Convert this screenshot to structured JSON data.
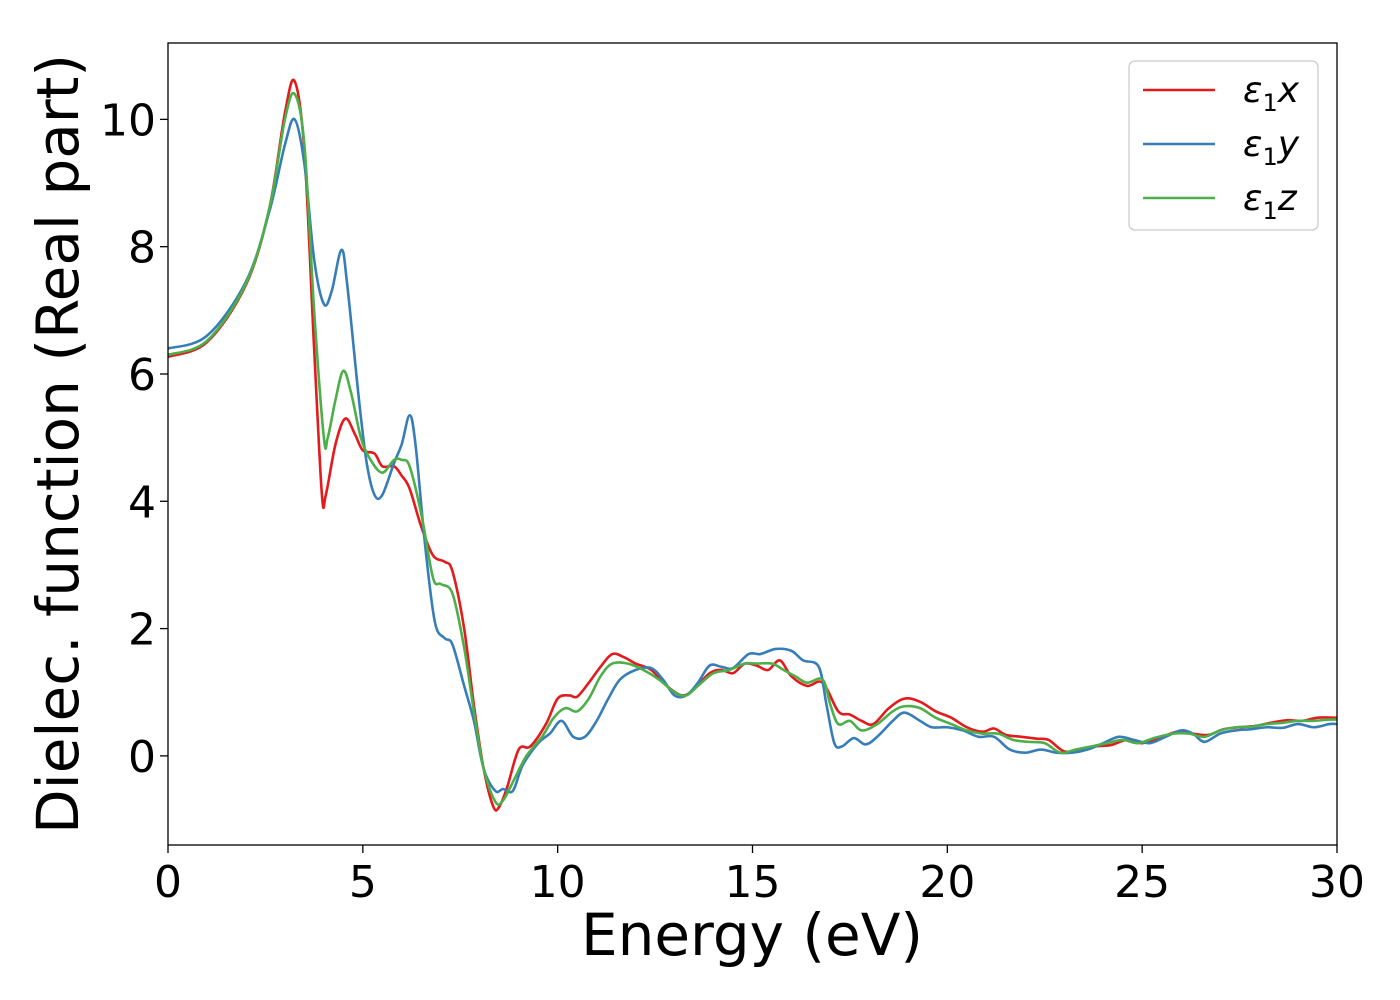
{
  "chart_data": {
    "type": "line",
    "xlabel": "Energy (eV)",
    "ylabel": "Dielec. function (Real part)",
    "xlim": [
      0,
      30
    ],
    "ylim": [
      -1.4,
      11.2
    ],
    "xticks": [
      0,
      5,
      10,
      15,
      20,
      25,
      30
    ],
    "xtick_labels": [
      "0",
      "5",
      "10",
      "15",
      "20",
      "25",
      "30"
    ],
    "yticks": [
      0,
      2,
      4,
      6,
      8,
      10
    ],
    "ytick_labels": [
      "0",
      "2",
      "4",
      "6",
      "8",
      "10"
    ],
    "grid": false,
    "legend_position": "top-right",
    "series": [
      {
        "name": "ε₁x",
        "name_base": "ε",
        "name_sub": "1",
        "name_var": "x",
        "color": "#e41a1c",
        "points": [
          [
            0,
            6.27
          ],
          [
            1,
            6.5
          ],
          [
            2,
            7.4
          ],
          [
            2.6,
            8.6
          ],
          [
            3,
            10.1
          ],
          [
            3.25,
            10.6
          ],
          [
            3.5,
            9.5
          ],
          [
            3.75,
            6.4
          ],
          [
            3.95,
            4.1
          ],
          [
            4.05,
            4.1
          ],
          [
            4.3,
            4.9
          ],
          [
            4.55,
            5.3
          ],
          [
            4.8,
            5.05
          ],
          [
            5,
            4.8
          ],
          [
            5.3,
            4.75
          ],
          [
            5.5,
            4.55
          ],
          [
            5.8,
            4.55
          ],
          [
            6,
            4.4
          ],
          [
            6.2,
            4.2
          ],
          [
            6.5,
            3.6
          ],
          [
            6.8,
            3.15
          ],
          [
            7.1,
            3.05
          ],
          [
            7.3,
            2.9
          ],
          [
            7.6,
            2.0
          ],
          [
            7.85,
            0.8
          ],
          [
            8.1,
            -0.2
          ],
          [
            8.35,
            -0.8
          ],
          [
            8.5,
            -0.8
          ],
          [
            8.7,
            -0.5
          ],
          [
            9.0,
            0.1
          ],
          [
            9.3,
            0.15
          ],
          [
            9.7,
            0.5
          ],
          [
            10.0,
            0.9
          ],
          [
            10.3,
            0.95
          ],
          [
            10.5,
            0.93
          ],
          [
            10.8,
            1.15
          ],
          [
            11.1,
            1.4
          ],
          [
            11.4,
            1.6
          ],
          [
            11.7,
            1.55
          ],
          [
            12.0,
            1.45
          ],
          [
            12.4,
            1.35
          ],
          [
            12.8,
            1.1
          ],
          [
            13.2,
            0.95
          ],
          [
            13.5,
            1.05
          ],
          [
            13.9,
            1.3
          ],
          [
            14.2,
            1.35
          ],
          [
            14.5,
            1.3
          ],
          [
            14.8,
            1.45
          ],
          [
            15.1,
            1.42
          ],
          [
            15.4,
            1.35
          ],
          [
            15.7,
            1.5
          ],
          [
            16.0,
            1.25
          ],
          [
            16.4,
            1.1
          ],
          [
            16.8,
            1.15
          ],
          [
            17.2,
            0.7
          ],
          [
            17.5,
            0.65
          ],
          [
            17.8,
            0.55
          ],
          [
            18.1,
            0.5
          ],
          [
            18.5,
            0.75
          ],
          [
            18.9,
            0.9
          ],
          [
            19.3,
            0.85
          ],
          [
            19.7,
            0.7
          ],
          [
            20.1,
            0.6
          ],
          [
            20.5,
            0.45
          ],
          [
            20.9,
            0.38
          ],
          [
            21.2,
            0.43
          ],
          [
            21.5,
            0.33
          ],
          [
            21.9,
            0.3
          ],
          [
            22.3,
            0.27
          ],
          [
            22.6,
            0.25
          ],
          [
            23.0,
            0.07
          ],
          [
            23.4,
            0.1
          ],
          [
            23.8,
            0.15
          ],
          [
            24.2,
            0.17
          ],
          [
            24.6,
            0.25
          ],
          [
            25.0,
            0.2
          ],
          [
            25.4,
            0.27
          ],
          [
            25.9,
            0.38
          ],
          [
            26.3,
            0.35
          ],
          [
            26.7,
            0.33
          ],
          [
            27.1,
            0.42
          ],
          [
            27.5,
            0.45
          ],
          [
            27.9,
            0.47
          ],
          [
            28.3,
            0.52
          ],
          [
            28.7,
            0.56
          ],
          [
            29.1,
            0.55
          ],
          [
            29.5,
            0.6
          ],
          [
            30,
            0.6
          ]
        ]
      },
      {
        "name": "ε₁y",
        "name_base": "ε",
        "name_sub": "1",
        "name_var": "y",
        "color": "#377eb8",
        "points": [
          [
            0,
            6.4
          ],
          [
            1,
            6.6
          ],
          [
            2,
            7.45
          ],
          [
            2.6,
            8.55
          ],
          [
            3,
            9.6
          ],
          [
            3.25,
            10.0
          ],
          [
            3.5,
            9.3
          ],
          [
            3.75,
            7.8
          ],
          [
            4.0,
            7.1
          ],
          [
            4.2,
            7.3
          ],
          [
            4.45,
            7.95
          ],
          [
            4.6,
            7.4
          ],
          [
            4.9,
            5.6
          ],
          [
            5.1,
            4.6
          ],
          [
            5.3,
            4.1
          ],
          [
            5.5,
            4.1
          ],
          [
            5.8,
            4.6
          ],
          [
            6.0,
            4.9
          ],
          [
            6.2,
            5.35
          ],
          [
            6.35,
            4.9
          ],
          [
            6.6,
            3.3
          ],
          [
            6.85,
            2.1
          ],
          [
            7.1,
            1.85
          ],
          [
            7.3,
            1.75
          ],
          [
            7.6,
            1.1
          ],
          [
            7.85,
            0.55
          ],
          [
            8.1,
            -0.2
          ],
          [
            8.4,
            -0.55
          ],
          [
            8.6,
            -0.52
          ],
          [
            8.85,
            -0.55
          ],
          [
            9.1,
            -0.15
          ],
          [
            9.5,
            0.2
          ],
          [
            9.8,
            0.35
          ],
          [
            10.1,
            0.55
          ],
          [
            10.4,
            0.3
          ],
          [
            10.7,
            0.3
          ],
          [
            11.0,
            0.55
          ],
          [
            11.3,
            0.9
          ],
          [
            11.6,
            1.2
          ],
          [
            12.0,
            1.35
          ],
          [
            12.4,
            1.38
          ],
          [
            12.7,
            1.2
          ],
          [
            13.0,
            0.95
          ],
          [
            13.3,
            0.95
          ],
          [
            13.6,
            1.15
          ],
          [
            13.9,
            1.42
          ],
          [
            14.2,
            1.4
          ],
          [
            14.5,
            1.38
          ],
          [
            14.9,
            1.6
          ],
          [
            15.2,
            1.6
          ],
          [
            15.6,
            1.68
          ],
          [
            16.0,
            1.65
          ],
          [
            16.3,
            1.5
          ],
          [
            16.7,
            1.4
          ],
          [
            16.9,
            0.8
          ],
          [
            17.1,
            0.2
          ],
          [
            17.3,
            0.15
          ],
          [
            17.6,
            0.28
          ],
          [
            17.9,
            0.18
          ],
          [
            18.2,
            0.3
          ],
          [
            18.6,
            0.55
          ],
          [
            18.9,
            0.68
          ],
          [
            19.3,
            0.55
          ],
          [
            19.6,
            0.45
          ],
          [
            20.0,
            0.45
          ],
          [
            20.4,
            0.4
          ],
          [
            20.8,
            0.3
          ],
          [
            21.2,
            0.3
          ],
          [
            21.6,
            0.1
          ],
          [
            22.0,
            0.05
          ],
          [
            22.4,
            0.1
          ],
          [
            22.8,
            0.05
          ],
          [
            23.2,
            0.05
          ],
          [
            23.6,
            0.1
          ],
          [
            24.0,
            0.2
          ],
          [
            24.4,
            0.3
          ],
          [
            24.8,
            0.25
          ],
          [
            25.2,
            0.2
          ],
          [
            25.6,
            0.3
          ],
          [
            26.0,
            0.4
          ],
          [
            26.3,
            0.35
          ],
          [
            26.6,
            0.22
          ],
          [
            27.0,
            0.35
          ],
          [
            27.4,
            0.4
          ],
          [
            27.8,
            0.42
          ],
          [
            28.2,
            0.45
          ],
          [
            28.6,
            0.44
          ],
          [
            29.0,
            0.5
          ],
          [
            29.4,
            0.45
          ],
          [
            29.8,
            0.5
          ],
          [
            30,
            0.5
          ]
        ]
      },
      {
        "name": "ε₁z",
        "name_base": "ε",
        "name_sub": "1",
        "name_var": "z",
        "color": "#4daf4a",
        "points": [
          [
            0,
            6.3
          ],
          [
            1,
            6.52
          ],
          [
            2,
            7.42
          ],
          [
            2.6,
            8.6
          ],
          [
            3,
            10.0
          ],
          [
            3.25,
            10.4
          ],
          [
            3.5,
            9.6
          ],
          [
            3.75,
            7.0
          ],
          [
            4.0,
            5.0
          ],
          [
            4.1,
            5.0
          ],
          [
            4.3,
            5.6
          ],
          [
            4.5,
            6.05
          ],
          [
            4.7,
            5.7
          ],
          [
            4.95,
            5.0
          ],
          [
            5.2,
            4.65
          ],
          [
            5.5,
            4.45
          ],
          [
            5.8,
            4.65
          ],
          [
            6.0,
            4.65
          ],
          [
            6.2,
            4.55
          ],
          [
            6.5,
            3.8
          ],
          [
            6.8,
            2.8
          ],
          [
            7.0,
            2.7
          ],
          [
            7.3,
            2.55
          ],
          [
            7.6,
            1.7
          ],
          [
            7.85,
            0.7
          ],
          [
            8.1,
            -0.2
          ],
          [
            8.4,
            -0.72
          ],
          [
            8.6,
            -0.7
          ],
          [
            8.9,
            -0.35
          ],
          [
            9.2,
            0.0
          ],
          [
            9.6,
            0.3
          ],
          [
            9.9,
            0.6
          ],
          [
            10.2,
            0.75
          ],
          [
            10.5,
            0.7
          ],
          [
            10.8,
            0.9
          ],
          [
            11.1,
            1.25
          ],
          [
            11.4,
            1.45
          ],
          [
            11.8,
            1.45
          ],
          [
            12.2,
            1.35
          ],
          [
            12.6,
            1.2
          ],
          [
            13.0,
            1.0
          ],
          [
            13.3,
            0.95
          ],
          [
            13.6,
            1.1
          ],
          [
            14.0,
            1.3
          ],
          [
            14.4,
            1.35
          ],
          [
            14.8,
            1.45
          ],
          [
            15.1,
            1.45
          ],
          [
            15.5,
            1.45
          ],
          [
            15.8,
            1.35
          ],
          [
            16.1,
            1.25
          ],
          [
            16.4,
            1.15
          ],
          [
            16.8,
            1.2
          ],
          [
            17.0,
            0.8
          ],
          [
            17.2,
            0.5
          ],
          [
            17.5,
            0.55
          ],
          [
            17.8,
            0.4
          ],
          [
            18.2,
            0.5
          ],
          [
            18.6,
            0.7
          ],
          [
            18.9,
            0.78
          ],
          [
            19.3,
            0.75
          ],
          [
            19.7,
            0.6
          ],
          [
            20.1,
            0.5
          ],
          [
            20.5,
            0.4
          ],
          [
            20.9,
            0.35
          ],
          [
            21.3,
            0.35
          ],
          [
            21.7,
            0.25
          ],
          [
            22.1,
            0.22
          ],
          [
            22.5,
            0.2
          ],
          [
            22.9,
            0.05
          ],
          [
            23.3,
            0.1
          ],
          [
            23.7,
            0.15
          ],
          [
            24.1,
            0.2
          ],
          [
            24.5,
            0.25
          ],
          [
            24.9,
            0.2
          ],
          [
            25.3,
            0.28
          ],
          [
            25.8,
            0.35
          ],
          [
            26.2,
            0.35
          ],
          [
            26.6,
            0.3
          ],
          [
            27.0,
            0.4
          ],
          [
            27.4,
            0.45
          ],
          [
            27.8,
            0.46
          ],
          [
            28.2,
            0.5
          ],
          [
            28.6,
            0.52
          ],
          [
            29.0,
            0.55
          ],
          [
            29.4,
            0.55
          ],
          [
            29.8,
            0.57
          ],
          [
            30,
            0.57
          ]
        ]
      }
    ]
  }
}
